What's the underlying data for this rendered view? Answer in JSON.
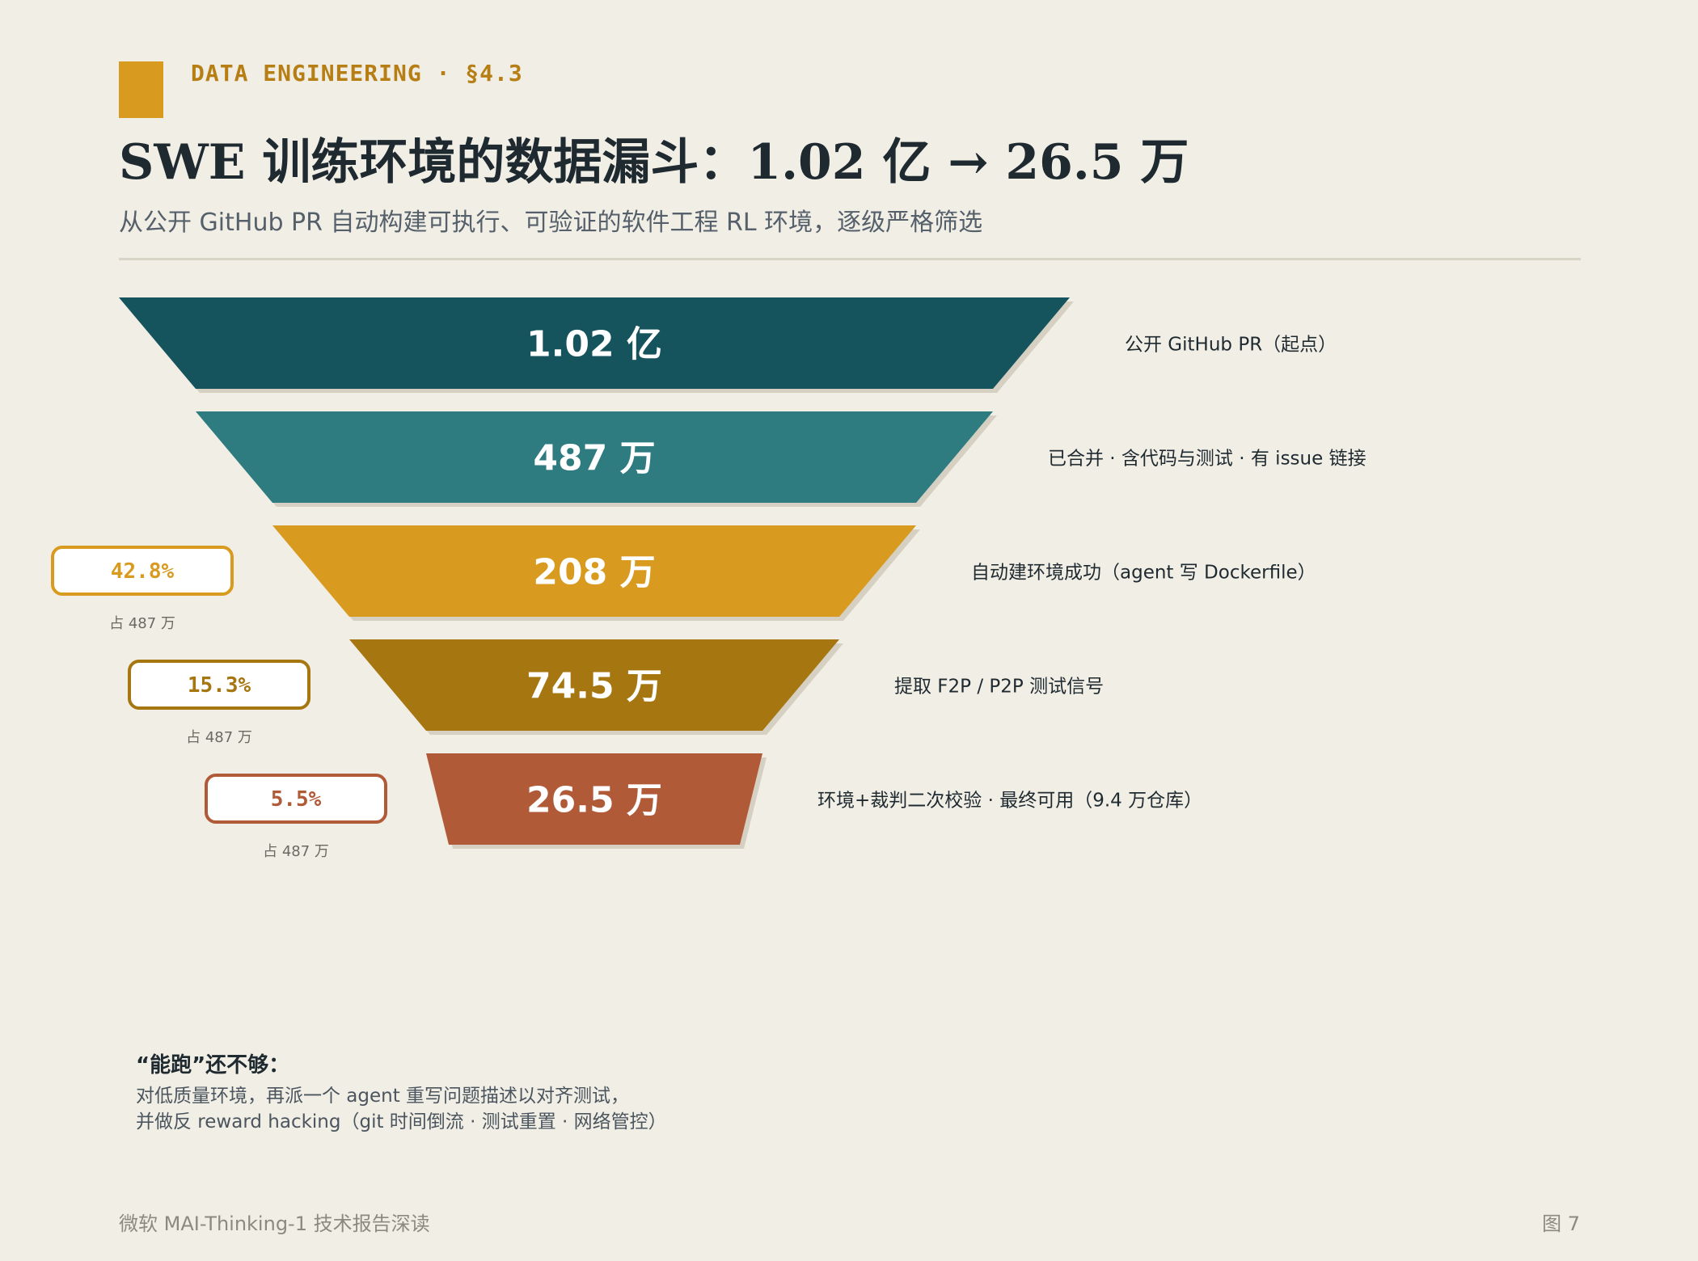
{
  "header": {
    "section": "DATA ENGINEERING · §4.3",
    "title": "SWE 训练环境的数据漏斗：1.02 亿 → 26.5 万",
    "subtitle": "从公开 GitHub PR 自动构建可执行、可验证的软件工程 RL 环境，逐级严格筛选"
  },
  "chart_data": {
    "type": "funnel",
    "stages": [
      {
        "value_label": "1.02 亿",
        "value": 102000000,
        "description": "公开 GitHub PR（起点）",
        "color": "#15535d"
      },
      {
        "value_label": "487 万",
        "value": 4870000,
        "description": "已合并 · 含代码与测试 · 有 issue 链接",
        "color": "#2e7b80"
      },
      {
        "value_label": "208 万",
        "value": 2080000,
        "description": "自动建环境成功（agent 写 Dockerfile）",
        "color": "#d99a20",
        "pct": "42.8%",
        "pct_caption": "占 487 万"
      },
      {
        "value_label": "74.5 万",
        "value": 745000,
        "description": "提取 F2P / P2P 测试信号",
        "color": "#a67610",
        "pct": "15.3%",
        "pct_caption": "占 487 万"
      },
      {
        "value_label": "26.5 万",
        "value": 265000,
        "description": "环境+裁判二次校验 · 最终可用（9.4 万仓库）",
        "color": "#b15a38",
        "pct": "5.5%",
        "pct_caption": "占 487 万"
      }
    ]
  },
  "note": {
    "title": "“能跑”还不够：",
    "lines": [
      "对低质量环境，再派一个 agent 重写问题描述以对齐测试，",
      "并做反 reward hacking（git 时间倒流 · 测试重置 · 网络管控）"
    ]
  },
  "footer": {
    "source": "微软 MAI-Thinking-1 技术报告深读",
    "figure": "图 7"
  }
}
